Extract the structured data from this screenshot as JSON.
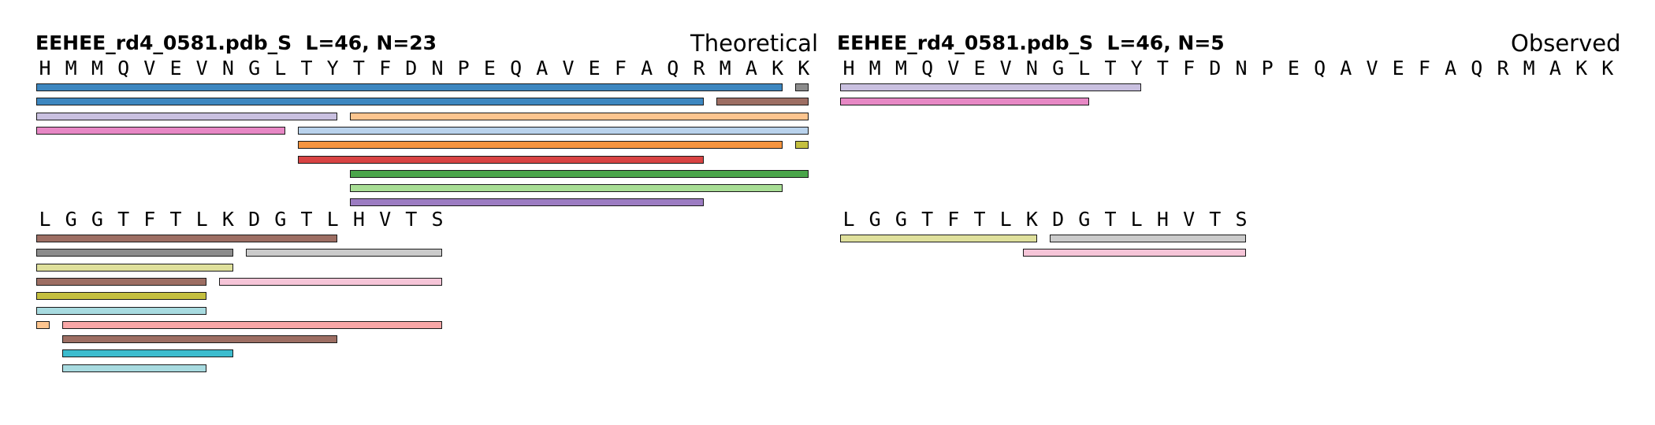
{
  "panels": [
    {
      "title": "EEHEE_rd4_0581.pdb_S  L=46, N=23",
      "mode": "Theoretical",
      "rows": [
        {
          "sequence": "HMMQVEVNGLTYTFDNPEQAVEFAQRMAKK",
          "peptides": [
            {
              "start": 1,
              "end": 29,
              "color": "#3d87c0"
            },
            {
              "start": 30,
              "end": 30,
              "color": "#8c8c8c"
            },
            {
              "start": 1,
              "end": 26,
              "color": "#3d87c0"
            },
            {
              "start": 27,
              "end": 30,
              "color": "#9d6e63"
            },
            {
              "start": 1,
              "end": 12,
              "color": "#c9c0e0"
            },
            {
              "start": 13,
              "end": 30,
              "color": "#fdc58f"
            },
            {
              "start": 1,
              "end": 10,
              "color": "#e788c5"
            },
            {
              "start": 11,
              "end": 30,
              "color": "#b9d2ec"
            },
            {
              "start": 11,
              "end": 29,
              "color": "#f6943f"
            },
            {
              "start": 30,
              "end": 30,
              "color": "#c4bf3f"
            },
            {
              "start": 11,
              "end": 26,
              "color": "#d84343"
            },
            {
              "start": 13,
              "end": 30,
              "color": "#4aa54a"
            },
            {
              "start": 13,
              "end": 29,
              "color": "#a8de95"
            },
            {
              "start": 13,
              "end": 26,
              "color": "#9c7cc2"
            }
          ]
        },
        {
          "sequence": "LGGTFTLKDGTLHVTS",
          "peptides": [
            {
              "start": 1,
              "end": 12,
              "color": "#9d6e63"
            },
            {
              "start": 1,
              "end": 8,
              "color": "#8c8c8c"
            },
            {
              "start": 9,
              "end": 16,
              "color": "#cbcbcb"
            },
            {
              "start": 1,
              "end": 8,
              "color": "#dfe09c"
            },
            {
              "start": 1,
              "end": 7,
              "color": "#9d6e63"
            },
            {
              "start": 8,
              "end": 16,
              "color": "#f6c5d8"
            },
            {
              "start": 1,
              "end": 7,
              "color": "#c4bf3f"
            },
            {
              "start": 1,
              "end": 7,
              "color": "#a8dbe0"
            },
            {
              "start": 1,
              "end": 1,
              "color": "#fdc58f"
            },
            {
              "start": 2,
              "end": 16,
              "color": "#f9a7a7"
            },
            {
              "start": 2,
              "end": 12,
              "color": "#9d6e63"
            },
            {
              "start": 2,
              "end": 8,
              "color": "#3cbcce"
            },
            {
              "start": 2,
              "end": 7,
              "color": "#a8dbe0"
            }
          ]
        }
      ]
    },
    {
      "title": "EEHEE_rd4_0581.pdb_S  L=46, N=5",
      "mode": "Observed",
      "rows": [
        {
          "sequence": "HMMQVEVNGLTYTFDNPEQAVEFAQRMAKK",
          "peptides": [
            {
              "start": 1,
              "end": 12,
              "color": "#c9c0e0"
            },
            {
              "start": 1,
              "end": 10,
              "color": "#e788c5"
            }
          ]
        },
        {
          "sequence": "LGGTFTLKDGTLHVTS",
          "peptides": [
            {
              "start": 1,
              "end": 8,
              "color": "#dfe09c"
            },
            {
              "start": 9,
              "end": 16,
              "color": "#cbcbcb"
            },
            {
              "start": 8,
              "end": 16,
              "color": "#f6c5d8"
            }
          ]
        }
      ]
    }
  ]
}
